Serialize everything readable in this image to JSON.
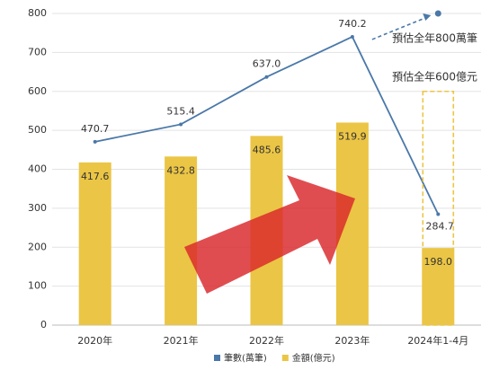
{
  "chart_data": {
    "type": "combo",
    "categories": [
      "2020年",
      "2021年",
      "2022年",
      "2023年",
      "2024年1-4月"
    ],
    "series": [
      {
        "name": "筆數(萬筆)",
        "type": "line",
        "color": "#4a78a8",
        "values": [
          470.7,
          515.4,
          637.0,
          740.2,
          284.7
        ],
        "value_labels": [
          "470.7",
          "515.4",
          "637.0",
          "740.2",
          "284.7"
        ]
      },
      {
        "name": "金額(億元)",
        "type": "bar",
        "color": "#ebc545",
        "values": [
          417.6,
          432.8,
          485.6,
          519.9,
          198.0
        ],
        "value_labels": [
          "417.6",
          "432.8",
          "485.6",
          "519.9",
          "198.0"
        ]
      }
    ],
    "annotations": [
      {
        "text": "預估全年800萬筆",
        "value": 800,
        "series": 0,
        "color": "#e0302a"
      },
      {
        "text": "預估全年600億元",
        "value": 600,
        "series": 1,
        "color": "#e0302a"
      }
    ],
    "ylim": [
      0,
      800
    ],
    "yticks": [
      0,
      100,
      200,
      300,
      400,
      500,
      600,
      700,
      800
    ],
    "grid": true,
    "legend": "bottom"
  }
}
